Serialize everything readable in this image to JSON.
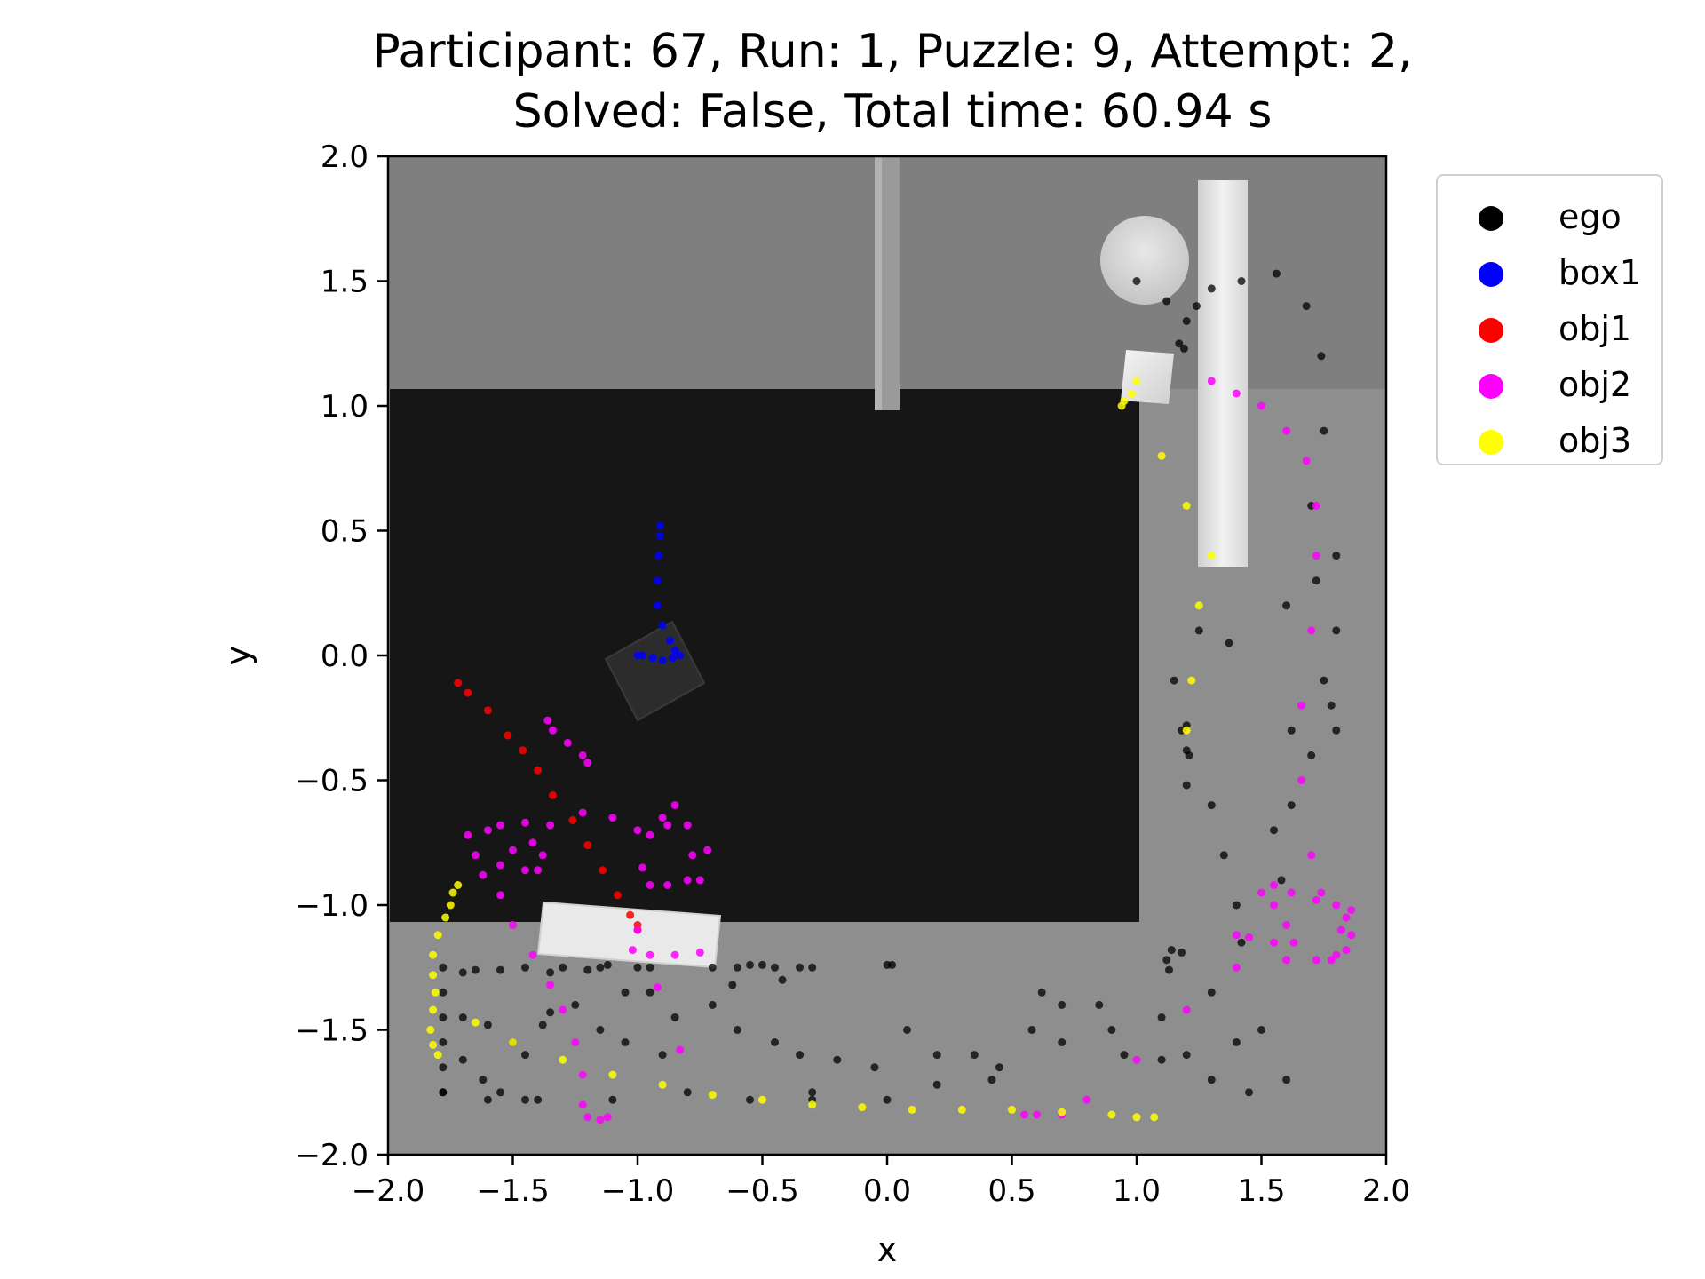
{
  "title_line1": "Participant: 67, Run: 1, Puzzle: 9, Attempt: 2,",
  "title_line2": "Solved: False, Total time: 60.94 s",
  "chart_data": {
    "type": "scatter",
    "title": "Participant: 67, Run: 1, Puzzle: 9, Attempt: 2,\nSolved: False, Total time: 60.94 s",
    "xlabel": "x",
    "ylabel": "y",
    "xlim": [
      -2.0,
      2.0
    ],
    "ylim": [
      -2.0,
      2.0
    ],
    "xticks": [
      -2.0,
      -1.5,
      -1.0,
      -0.5,
      0.0,
      0.5,
      1.0,
      1.5,
      2.0
    ],
    "yticks": [
      -2.0,
      -1.5,
      -1.0,
      -0.5,
      0.0,
      0.5,
      1.0,
      1.5,
      2.0
    ],
    "xtick_labels": [
      "−2.0",
      "−1.5",
      "−1.0",
      "−0.5",
      "0.0",
      "0.5",
      "1.0",
      "1.5",
      "2.0"
    ],
    "ytick_labels": [
      "−2.0",
      "−1.5",
      "−1.0",
      "−0.5",
      "0.0",
      "0.5",
      "1.0",
      "1.5",
      "2.0"
    ],
    "legend_position": "outside-right-top",
    "grid": false,
    "series": [
      {
        "name": "ego",
        "color": "#000000",
        "points": [
          [
            1.0,
            1.5
          ],
          [
            1.12,
            1.42
          ],
          [
            1.2,
            1.34
          ],
          [
            1.24,
            1.4
          ],
          [
            1.3,
            1.47
          ],
          [
            1.42,
            1.5
          ],
          [
            1.56,
            1.53
          ],
          [
            1.68,
            1.4
          ],
          [
            1.74,
            1.2
          ],
          [
            1.75,
            0.9
          ],
          [
            1.7,
            0.6
          ],
          [
            1.72,
            0.3
          ],
          [
            1.8,
            0.1
          ],
          [
            1.78,
            -0.2
          ],
          [
            1.7,
            -0.4
          ],
          [
            1.62,
            -0.6
          ],
          [
            1.58,
            -0.9
          ],
          [
            1.42,
            -1.15
          ],
          [
            1.3,
            -1.35
          ],
          [
            1.1,
            -1.45
          ],
          [
            0.9,
            -1.5
          ],
          [
            0.7,
            -1.55
          ],
          [
            0.45,
            -1.65
          ],
          [
            0.2,
            -1.72
          ],
          [
            0.0,
            -1.78
          ],
          [
            -0.3,
            -1.75
          ],
          [
            -0.55,
            -1.78
          ],
          [
            -0.8,
            -1.75
          ],
          [
            -1.1,
            -1.78
          ],
          [
            -1.4,
            -1.78
          ],
          [
            -1.6,
            -1.78
          ],
          [
            -1.78,
            -1.75
          ],
          [
            1.19,
            1.23
          ],
          [
            1.17,
            1.25
          ],
          [
            1.37,
            0.05
          ],
          [
            1.2,
            -0.28
          ],
          [
            1.2,
            -0.38
          ],
          [
            1.21,
            -0.4
          ],
          [
            1.2,
            -0.52
          ],
          [
            1.12,
            -1.22
          ],
          [
            1.14,
            -1.18
          ],
          [
            1.18,
            -1.19
          ],
          [
            1.13,
            -1.26
          ],
          [
            1.18,
            -0.3
          ],
          [
            1.15,
            -0.1
          ],
          [
            1.25,
            0.1
          ],
          [
            1.3,
            -0.6
          ],
          [
            1.35,
            -0.8
          ],
          [
            1.4,
            -1.0
          ],
          [
            1.6,
            0.2
          ],
          [
            1.62,
            -0.3
          ],
          [
            1.55,
            -0.7
          ],
          [
            1.8,
            -0.3
          ],
          [
            1.8,
            0.4
          ],
          [
            1.75,
            -0.1
          ],
          [
            0.08,
            -1.5
          ],
          [
            0.02,
            -1.24
          ],
          [
            0.0,
            -1.24
          ],
          [
            -0.3,
            -1.25
          ],
          [
            -0.35,
            -1.25
          ],
          [
            -0.45,
            -1.25
          ],
          [
            -0.5,
            -1.24
          ],
          [
            -0.55,
            -1.24
          ],
          [
            -0.6,
            -1.25
          ],
          [
            -0.7,
            -1.25
          ],
          [
            -0.95,
            -1.25
          ],
          [
            -1.0,
            -1.25
          ],
          [
            -1.12,
            -1.24
          ],
          [
            -1.15,
            -1.25
          ],
          [
            -1.2,
            -1.26
          ],
          [
            -1.3,
            -1.25
          ],
          [
            -1.35,
            -1.27
          ],
          [
            -1.45,
            -1.25
          ],
          [
            -1.55,
            -1.26
          ],
          [
            -1.65,
            -1.26
          ],
          [
            -1.7,
            -1.27
          ],
          [
            -1.78,
            -1.25
          ],
          [
            -1.78,
            -1.35
          ],
          [
            -1.78,
            -1.45
          ],
          [
            -1.78,
            -1.55
          ],
          [
            -1.78,
            -1.65
          ],
          [
            -1.78,
            -1.75
          ],
          [
            -1.7,
            -1.45
          ],
          [
            -1.6,
            -1.48
          ],
          [
            -1.5,
            -1.55
          ],
          [
            -1.45,
            -1.6
          ],
          [
            -1.38,
            -1.48
          ],
          [
            -1.35,
            -1.43
          ],
          [
            -1.25,
            -1.4
          ],
          [
            -1.15,
            -1.5
          ],
          [
            -1.05,
            -1.55
          ],
          [
            -0.9,
            -1.6
          ],
          [
            -0.85,
            -1.45
          ],
          [
            -0.7,
            -1.4
          ],
          [
            -0.6,
            -1.5
          ],
          [
            -0.45,
            -1.55
          ],
          [
            -0.35,
            -1.6
          ],
          [
            -0.3,
            -1.78
          ],
          [
            -0.2,
            -1.62
          ],
          [
            -0.05,
            -1.65
          ],
          [
            0.2,
            -1.6
          ],
          [
            0.35,
            -1.6
          ],
          [
            0.42,
            -1.7
          ],
          [
            0.58,
            -1.5
          ],
          [
            0.62,
            -1.35
          ],
          [
            0.7,
            -1.4
          ],
          [
            0.85,
            -1.4
          ],
          [
            0.95,
            -1.6
          ],
          [
            1.1,
            -1.62
          ],
          [
            1.2,
            -1.6
          ],
          [
            1.3,
            -1.7
          ],
          [
            1.45,
            -1.75
          ],
          [
            1.6,
            -1.7
          ],
          [
            1.5,
            -1.5
          ],
          [
            1.4,
            -1.55
          ],
          [
            -1.45,
            -1.78
          ],
          [
            -1.55,
            -1.75
          ],
          [
            -1.62,
            -1.7
          ],
          [
            -1.7,
            -1.62
          ],
          [
            -1.05,
            -1.35
          ],
          [
            -0.95,
            -1.35
          ],
          [
            -0.62,
            -1.32
          ],
          [
            -0.42,
            -1.3
          ]
        ]
      },
      {
        "name": "box1",
        "color": "#0000ff",
        "points": [
          [
            -0.91,
            0.52
          ],
          [
            -0.91,
            0.48
          ],
          [
            -0.915,
            0.4
          ],
          [
            -0.92,
            0.3
          ],
          [
            -0.92,
            0.2
          ],
          [
            -0.9,
            0.12
          ],
          [
            -0.87,
            0.06
          ],
          [
            -0.85,
            0.02
          ],
          [
            -0.83,
            0.0
          ],
          [
            -0.86,
            -0.01
          ],
          [
            -0.9,
            -0.02
          ],
          [
            -0.94,
            -0.01
          ],
          [
            -0.98,
            0.0
          ],
          [
            -1.0,
            0.0
          ]
        ]
      },
      {
        "name": "obj1",
        "color": "#ff0000",
        "points": [
          [
            -1.72,
            -0.11
          ],
          [
            -1.68,
            -0.15
          ],
          [
            -1.6,
            -0.22
          ],
          [
            -1.52,
            -0.32
          ],
          [
            -1.46,
            -0.38
          ],
          [
            -1.4,
            -0.46
          ],
          [
            -1.34,
            -0.56
          ],
          [
            -1.26,
            -0.66
          ],
          [
            -1.2,
            -0.76
          ],
          [
            -1.14,
            -0.86
          ],
          [
            -1.08,
            -0.96
          ],
          [
            -1.03,
            -1.04
          ],
          [
            -1.0,
            -1.08
          ],
          [
            -1.0,
            -1.1
          ]
        ]
      },
      {
        "name": "obj2",
        "color": "#ff00ff",
        "points": [
          [
            -1.36,
            -0.26
          ],
          [
            -1.34,
            -0.3
          ],
          [
            -1.28,
            -0.35
          ],
          [
            -1.22,
            -0.4
          ],
          [
            -1.2,
            -0.43
          ],
          [
            -1.22,
            -0.63
          ],
          [
            -1.1,
            -0.65
          ],
          [
            -1.0,
            -0.7
          ],
          [
            -0.9,
            -0.65
          ],
          [
            -0.85,
            -0.6
          ],
          [
            -0.88,
            -0.68
          ],
          [
            -0.95,
            -0.72
          ],
          [
            -0.98,
            -0.85
          ],
          [
            -0.95,
            -0.92
          ],
          [
            -0.88,
            -0.92
          ],
          [
            -0.8,
            -0.9
          ],
          [
            -0.78,
            -0.8
          ],
          [
            -0.8,
            -0.68
          ],
          [
            -0.72,
            -0.78
          ],
          [
            -0.75,
            -0.9
          ],
          [
            -1.6,
            -0.7
          ],
          [
            -1.55,
            -0.68
          ],
          [
            -1.45,
            -0.67
          ],
          [
            -1.42,
            -0.75
          ],
          [
            -1.5,
            -0.78
          ],
          [
            -1.55,
            -0.84
          ],
          [
            -1.45,
            -0.86
          ],
          [
            -1.4,
            -0.86
          ],
          [
            -1.35,
            -0.68
          ],
          [
            -1.38,
            -0.8
          ],
          [
            -1.65,
            -0.8
          ],
          [
            -1.68,
            -0.72
          ],
          [
            -1.62,
            -0.88
          ],
          [
            -1.55,
            -0.96
          ],
          [
            -1.5,
            -1.08
          ],
          [
            -1.42,
            -1.2
          ],
          [
            -1.35,
            -1.32
          ],
          [
            -1.3,
            -1.42
          ],
          [
            -1.25,
            -1.55
          ],
          [
            -1.22,
            -1.68
          ],
          [
            -1.22,
            -1.8
          ],
          [
            -1.2,
            -1.85
          ],
          [
            -1.15,
            -1.86
          ],
          [
            -1.12,
            -1.85
          ],
          [
            -1.0,
            -1.1
          ],
          [
            -1.02,
            -1.18
          ],
          [
            -0.95,
            -1.2
          ],
          [
            -0.85,
            -1.2
          ],
          [
            -0.75,
            -1.19
          ],
          [
            -0.92,
            -1.33
          ],
          [
            -0.83,
            -1.58
          ],
          [
            0.7,
            -1.84
          ],
          [
            0.6,
            -1.84
          ],
          [
            0.55,
            -1.84
          ],
          [
            0.8,
            -1.78
          ],
          [
            1.0,
            -1.62
          ],
          [
            1.2,
            -1.42
          ],
          [
            1.4,
            -1.25
          ],
          [
            1.6,
            -1.22
          ],
          [
            1.72,
            -1.22
          ],
          [
            1.8,
            -1.2
          ],
          [
            1.84,
            -1.18
          ],
          [
            1.86,
            -1.12
          ],
          [
            1.84,
            -1.05
          ],
          [
            1.86,
            -1.02
          ],
          [
            1.8,
            -1.0
          ],
          [
            1.72,
            -0.98
          ],
          [
            1.62,
            -0.95
          ],
          [
            1.55,
            -0.92
          ],
          [
            1.5,
            -0.95
          ],
          [
            1.55,
            -1.0
          ],
          [
            1.6,
            -1.08
          ],
          [
            1.63,
            -1.15
          ],
          [
            1.55,
            -1.15
          ],
          [
            1.45,
            -1.13
          ],
          [
            1.4,
            -1.12
          ],
          [
            1.82,
            -1.1
          ],
          [
            1.78,
            -1.22
          ],
          [
            1.3,
            1.1
          ],
          [
            1.4,
            1.05
          ],
          [
            1.5,
            1.0
          ],
          [
            1.6,
            0.9
          ],
          [
            1.68,
            0.78
          ],
          [
            1.72,
            0.6
          ],
          [
            1.72,
            0.4
          ],
          [
            1.7,
            0.1
          ],
          [
            1.66,
            -0.2
          ],
          [
            1.66,
            -0.5
          ],
          [
            1.7,
            -0.8
          ],
          [
            1.74,
            -0.95
          ]
        ]
      },
      {
        "name": "obj3",
        "color": "#ffff00",
        "points": [
          [
            1.0,
            1.1
          ],
          [
            0.98,
            1.05
          ],
          [
            0.95,
            1.02
          ],
          [
            0.94,
            1.0
          ],
          [
            -1.72,
            -0.92
          ],
          [
            -1.74,
            -0.95
          ],
          [
            -1.75,
            -1.0
          ],
          [
            -1.77,
            -1.05
          ],
          [
            -1.8,
            -1.12
          ],
          [
            -1.82,
            -1.2
          ],
          [
            -1.82,
            -1.28
          ],
          [
            -1.81,
            -1.35
          ],
          [
            -1.82,
            -1.42
          ],
          [
            -1.83,
            -1.5
          ],
          [
            -1.82,
            -1.56
          ],
          [
            -1.8,
            -1.6
          ],
          [
            -1.65,
            -1.47
          ],
          [
            -1.5,
            -1.55
          ],
          [
            -1.3,
            -1.62
          ],
          [
            -1.1,
            -1.68
          ],
          [
            -0.9,
            -1.72
          ],
          [
            -0.7,
            -1.76
          ],
          [
            -0.5,
            -1.78
          ],
          [
            -0.3,
            -1.8
          ],
          [
            -0.1,
            -1.81
          ],
          [
            0.1,
            -1.82
          ],
          [
            0.3,
            -1.82
          ],
          [
            0.5,
            -1.82
          ],
          [
            0.7,
            -1.83
          ],
          [
            0.9,
            -1.84
          ],
          [
            1.0,
            -1.85
          ],
          [
            1.07,
            -1.85
          ],
          [
            1.1,
            0.8
          ],
          [
            1.2,
            0.6
          ],
          [
            1.3,
            0.4
          ],
          [
            1.25,
            0.2
          ],
          [
            1.22,
            -0.1
          ],
          [
            1.2,
            -0.3
          ]
        ]
      }
    ]
  },
  "legend": [
    {
      "label": "ego",
      "color": "#000000"
    },
    {
      "label": "box1",
      "color": "#0000ff"
    },
    {
      "label": "obj1",
      "color": "#ff0000"
    },
    {
      "label": "obj2",
      "color": "#ff00ff"
    },
    {
      "label": "obj3",
      "color": "#ffff00"
    }
  ]
}
